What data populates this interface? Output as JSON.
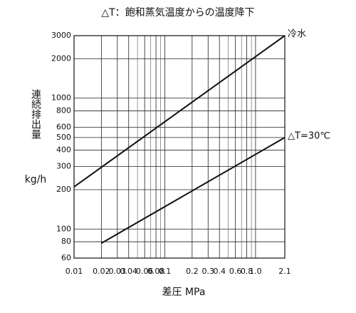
{
  "chart_data": {
    "type": "line",
    "title": "△T：飽和蒸気温度からの温度降下",
    "y_label": "連続排出量",
    "y_unit": "kg/h",
    "x_label": "差圧 MPa",
    "log_x": true,
    "log_y": true,
    "grid": true,
    "xlim": [
      0.01,
      2.1
    ],
    "ylim": [
      60,
      3000
    ],
    "xticks": [
      0.01,
      0.02,
      0.03,
      0.04,
      0.06,
      0.08,
      0.1,
      0.2,
      0.3,
      0.4,
      0.6,
      0.8,
      {
        "value": 1,
        "label": "1.0"
      },
      2.1
    ],
    "x_minor_grid": [
      0.05,
      0.07,
      0.09,
      0.5,
      0.7,
      0.9
    ],
    "yticks": [
      60,
      80,
      100,
      200,
      300,
      400,
      500,
      600,
      800,
      1000,
      2000,
      3000
    ],
    "series": [
      {
        "name": "冷水",
        "color": "#111111",
        "x": [
          0.01,
          2.1
        ],
        "values": [
          210,
          3000
        ]
      },
      {
        "name": "△T=30℃",
        "color": "#111111",
        "x": [
          0.02,
          2.1
        ],
        "values": [
          78,
          500
        ]
      }
    ]
  }
}
